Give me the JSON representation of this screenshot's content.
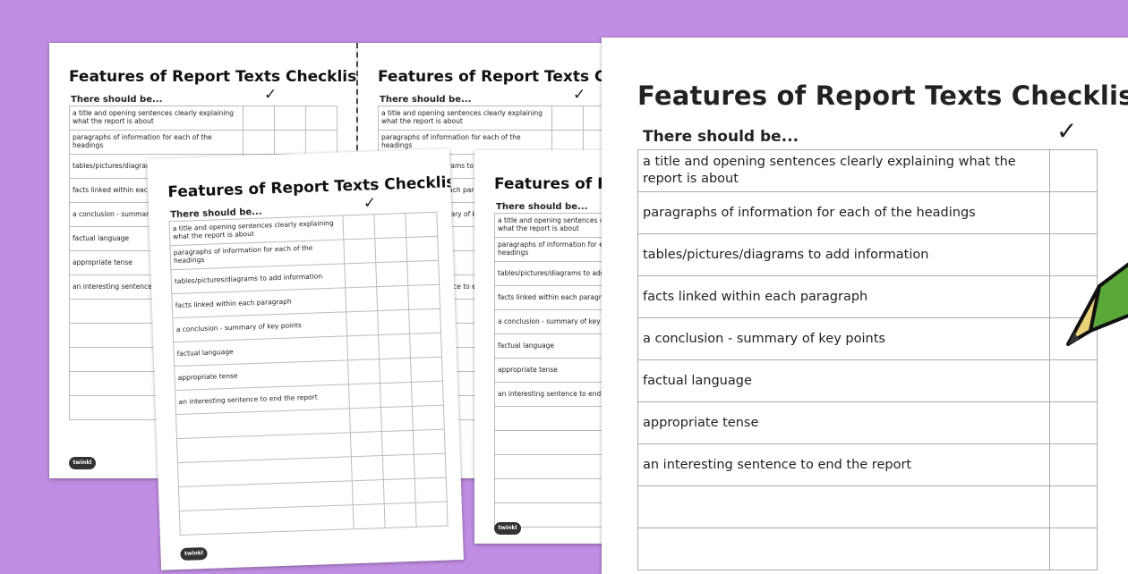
{
  "worksheet": {
    "title": "Features of Report Texts Checklist",
    "subheading": "There should be...",
    "tick_symbol": "✓",
    "items": [
      "a title and opening sentences clearly explaining what the report is about",
      "paragraphs of information for each of the headings",
      "tables/pictures/diagrams to add information",
      "facts linked within each paragraph",
      "a conclusion - summary of key points",
      "factual language",
      "appropriate tense",
      "an interesting sentence to end the report"
    ],
    "logo_text": "twinkl"
  },
  "colors": {
    "background": "#bf8de2",
    "pencil_body": "#5aa83a",
    "pencil_wood": "#e8d27a"
  }
}
